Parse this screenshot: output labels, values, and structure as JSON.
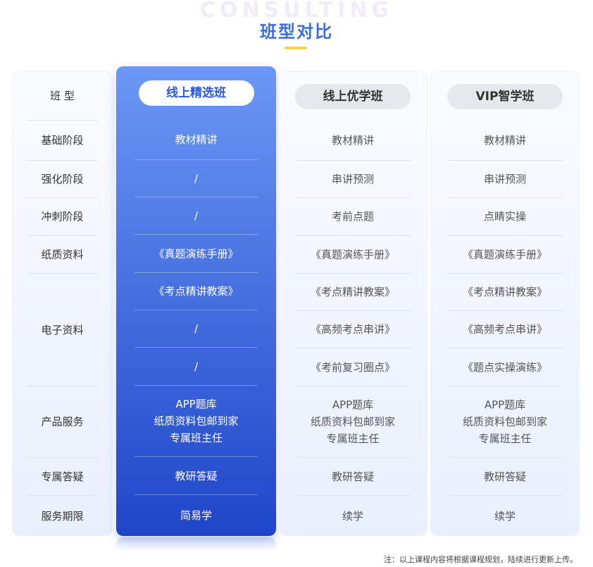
{
  "header": {
    "bg_word": "CONSULTING",
    "title": "班型对比"
  },
  "labels": [
    "班 型",
    "基础阶段",
    "强化阶段",
    "冲刺阶段",
    "纸质资料",
    "电子资料",
    "产品服务",
    "专属答疑",
    "服务期限"
  ],
  "columns": [
    {
      "name": "线上精选班",
      "selected": true,
      "basic": "教材精讲",
      "strengthen": "/",
      "sprint": "/",
      "paper": "《真题演练手册》",
      "e1": "《考点精讲教案》",
      "e2": "/",
      "e3": "/",
      "svc1": "APP题库",
      "svc2": "纸质资料包邮到家",
      "svc3": "专属班主任",
      "qa": "教研答疑",
      "term": "简易学"
    },
    {
      "name": "线上优学班",
      "selected": false,
      "basic": "教材精讲",
      "strengthen": "串讲预测",
      "sprint": "考前点题",
      "paper": "《真题演练手册》",
      "e1": "《考点精讲教案》",
      "e2": "《高频考点串讲》",
      "e3": "《考前复习圈点》",
      "svc1": "APP题库",
      "svc2": "纸质资料包邮到家",
      "svc3": "专属班主任",
      "qa": "教研答疑",
      "term": "续学"
    },
    {
      "name": "VIP智学班",
      "selected": false,
      "basic": "教材精讲",
      "strengthen": "串讲预测",
      "sprint": "点睛实操",
      "paper": "《真题演练手册》",
      "e1": "《考点精讲教案》",
      "e2": "《高频考点串讲》",
      "e3": "《题点实操演练》",
      "svc1": "APP题库",
      "svc2": "纸质资料包邮到家",
      "svc3": "专属班主任",
      "qa": "教研答疑",
      "term": "续学"
    }
  ],
  "note": "注：以上课程内容将根据课程规划，陆续进行更新上传。",
  "colors": {
    "accent": "#3a6de0",
    "selected_top": "#6b97f5",
    "selected_bottom": "#1f46c9",
    "underline": "#f7d157"
  }
}
